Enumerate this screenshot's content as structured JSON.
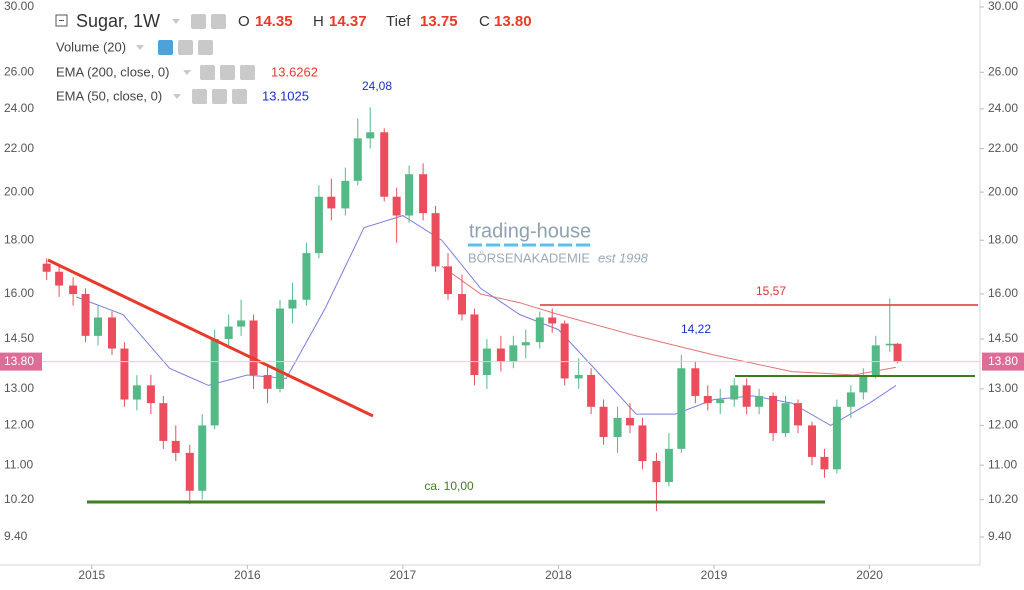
{
  "header": {
    "symbol": "Sugar, 1W",
    "open_label": "O",
    "open": "14.35",
    "high_label": "H",
    "high": "14.37",
    "low_label": "Tief",
    "low": "13.75",
    "close_label": "C",
    "close": "13.80",
    "volume": "Volume (20)"
  },
  "watermark": {
    "brand": "trading-house",
    "sub": "BÖRSENAKADEMIE",
    "est": "est 1998"
  },
  "annotations": [
    "24,08",
    "15,57",
    "14,22",
    "ca. 10,00"
  ],
  "chart_data": {
    "type": "candlestick",
    "log": true,
    "xlim": [
      2014.41,
      2020.71
    ],
    "xticks": [
      2015,
      2016,
      2017,
      2018,
      2019,
      2020
    ],
    "ylim": [
      8.84,
      30.46
    ],
    "yticks": [
      {
        "value": 30,
        "label": "30.00"
      },
      {
        "value": 26,
        "label": "26.00"
      },
      {
        "value": 24,
        "label": "24.00"
      },
      {
        "value": 22,
        "label": "22.00"
      },
      {
        "value": 20,
        "label": "20.00"
      },
      {
        "value": 18,
        "label": "18.00"
      },
      {
        "value": 16,
        "label": "16.00"
      },
      {
        "value": 14.5,
        "label": "14.50"
      },
      {
        "value": 13,
        "label": "13.00"
      },
      {
        "value": 12,
        "label": "12.00"
      },
      {
        "value": 11,
        "label": "11.00"
      },
      {
        "value": 10.2,
        "label": "10.20"
      },
      {
        "value": 9.4,
        "label": "9.40"
      }
    ],
    "up_color": "#53b987",
    "down_color": "#eb4d5c",
    "x": [
      2014.71,
      2014.79,
      2014.88,
      2014.96,
      2015.04,
      2015.13,
      2015.21,
      2015.29,
      2015.38,
      2015.46,
      2015.54,
      2015.63,
      2015.71,
      2015.79,
      2015.88,
      2015.96,
      2016.04,
      2016.13,
      2016.21,
      2016.29,
      2016.38,
      2016.46,
      2016.54,
      2016.63,
      2016.71,
      2016.79,
      2016.88,
      2016.96,
      2017.04,
      2017.13,
      2017.21,
      2017.29,
      2017.38,
      2017.46,
      2017.54,
      2017.63,
      2017.71,
      2017.79,
      2017.88,
      2017.96,
      2018.04,
      2018.13,
      2018.21,
      2018.29,
      2018.38,
      2018.46,
      2018.54,
      2018.63,
      2018.71,
      2018.79,
      2018.88,
      2018.96,
      2019.04,
      2019.13,
      2019.21,
      2019.29,
      2019.38,
      2019.46,
      2019.54,
      2019.63,
      2019.71,
      2019.79,
      2019.88,
      2019.96,
      2020.04,
      2020.13,
      2020.18
    ],
    "open": [
      17.1,
      16.8,
      16.3,
      16.0,
      14.6,
      15.2,
      14.2,
      12.7,
      13.1,
      12.6,
      11.6,
      11.3,
      10.4,
      12.0,
      14.5,
      14.9,
      15.1,
      13.4,
      13.0,
      15.5,
      15.8,
      17.5,
      19.8,
      19.3,
      20.5,
      22.5,
      22.8,
      19.8,
      19.0,
      20.8,
      19.1,
      17.0,
      16.0,
      15.3,
      13.4,
      14.2,
      13.8,
      14.3,
      14.4,
      15.2,
      15.0,
      13.3,
      13.4,
      12.5,
      11.7,
      12.2,
      12.0,
      11.1,
      10.6,
      11.4,
      13.6,
      12.8,
      12.6,
      12.7,
      13.1,
      12.5,
      12.8,
      11.8,
      12.6,
      12.0,
      11.2,
      10.9,
      12.5,
      12.9,
      13.4,
      14.3,
      14.35
    ],
    "high": [
      17.3,
      17.0,
      16.6,
      16.2,
      15.6,
      15.4,
      14.4,
      13.4,
      13.4,
      12.8,
      12.0,
      11.5,
      12.3,
      14.8,
      15.3,
      15.8,
      15.3,
      13.7,
      15.8,
      16.4,
      17.9,
      20.3,
      20.6,
      21.1,
      23.5,
      24.08,
      23.0,
      20.2,
      21.2,
      21.3,
      19.4,
      17.5,
      16.7,
      15.5,
      14.5,
      14.6,
      14.6,
      14.8,
      15.4,
      15.5,
      15.1,
      13.9,
      13.6,
      12.7,
      12.5,
      12.6,
      12.2,
      11.3,
      11.8,
      14.0,
      13.8,
      13.1,
      13.0,
      13.3,
      13.3,
      13.0,
      12.9,
      12.8,
      12.7,
      12.1,
      11.4,
      12.7,
      13.1,
      13.6,
      14.6,
      15.85,
      14.37
    ],
    "low": [
      16.5,
      15.9,
      15.6,
      14.4,
      14.3,
      14.0,
      12.5,
      12.4,
      12.3,
      11.4,
      11.1,
      10.1,
      10.2,
      11.9,
      14.2,
      14.6,
      13.0,
      12.6,
      12.9,
      15.0,
      15.6,
      17.3,
      18.8,
      19.0,
      20.3,
      22.0,
      19.6,
      17.9,
      18.7,
      18.8,
      16.8,
      15.8,
      15.1,
      13.1,
      13.0,
      13.5,
      13.6,
      13.9,
      14.2,
      14.7,
      13.1,
      13.0,
      12.3,
      11.5,
      11.3,
      11.8,
      10.9,
      9.95,
      10.5,
      11.3,
      12.6,
      12.4,
      12.3,
      12.5,
      12.3,
      12.3,
      11.6,
      11.7,
      11.8,
      11.0,
      10.7,
      10.8,
      12.2,
      12.7,
      13.3,
      14.1,
      13.75
    ],
    "close": [
      16.8,
      16.3,
      16.0,
      14.6,
      15.2,
      14.2,
      12.7,
      13.1,
      12.6,
      11.6,
      11.3,
      10.4,
      12.0,
      14.5,
      14.9,
      15.1,
      13.4,
      13.0,
      15.5,
      15.8,
      17.5,
      19.8,
      19.3,
      20.5,
      22.5,
      22.8,
      19.8,
      19.0,
      20.8,
      19.1,
      17.0,
      16.0,
      15.3,
      13.4,
      14.2,
      13.8,
      14.3,
      14.4,
      15.2,
      15.0,
      13.3,
      13.4,
      12.5,
      11.7,
      12.2,
      12.0,
      11.1,
      10.6,
      11.4,
      13.6,
      12.8,
      12.6,
      12.7,
      13.1,
      12.5,
      12.8,
      11.8,
      12.6,
      12.0,
      11.2,
      10.9,
      12.5,
      12.9,
      13.4,
      14.3,
      14.35,
      13.8
    ],
    "lines": [
      {
        "name": "EMA (200, close, 0)",
        "last_label": "13.6262",
        "color": "#e57373",
        "x": [
          2017.25,
          2017.5,
          2017.75,
          2018.0,
          2018.5,
          2019.0,
          2019.5,
          2019.9,
          2020.17
        ],
        "values": [
          17.0,
          16.0,
          15.7,
          15.3,
          14.6,
          14.0,
          13.5,
          13.4,
          13.63
        ]
      },
      {
        "name": "EMA (50, close, 0)",
        "last_label": "13.1025",
        "color": "#7b7fdc",
        "x": [
          2014.9,
          2015.2,
          2015.5,
          2015.75,
          2016.0,
          2016.25,
          2016.5,
          2016.75,
          2017.0,
          2017.25,
          2017.5,
          2017.75,
          2018.0,
          2018.25,
          2018.5,
          2018.75,
          2019.0,
          2019.25,
          2019.5,
          2019.75,
          2020.0,
          2020.17
        ],
        "values": [
          15.9,
          15.3,
          13.6,
          13.1,
          13.4,
          13.3,
          15.5,
          18.5,
          19.0,
          18.0,
          16.2,
          15.3,
          14.8,
          13.5,
          12.3,
          12.3,
          12.7,
          12.8,
          12.6,
          12.0,
          12.6,
          13.1
        ]
      }
    ]
  }
}
